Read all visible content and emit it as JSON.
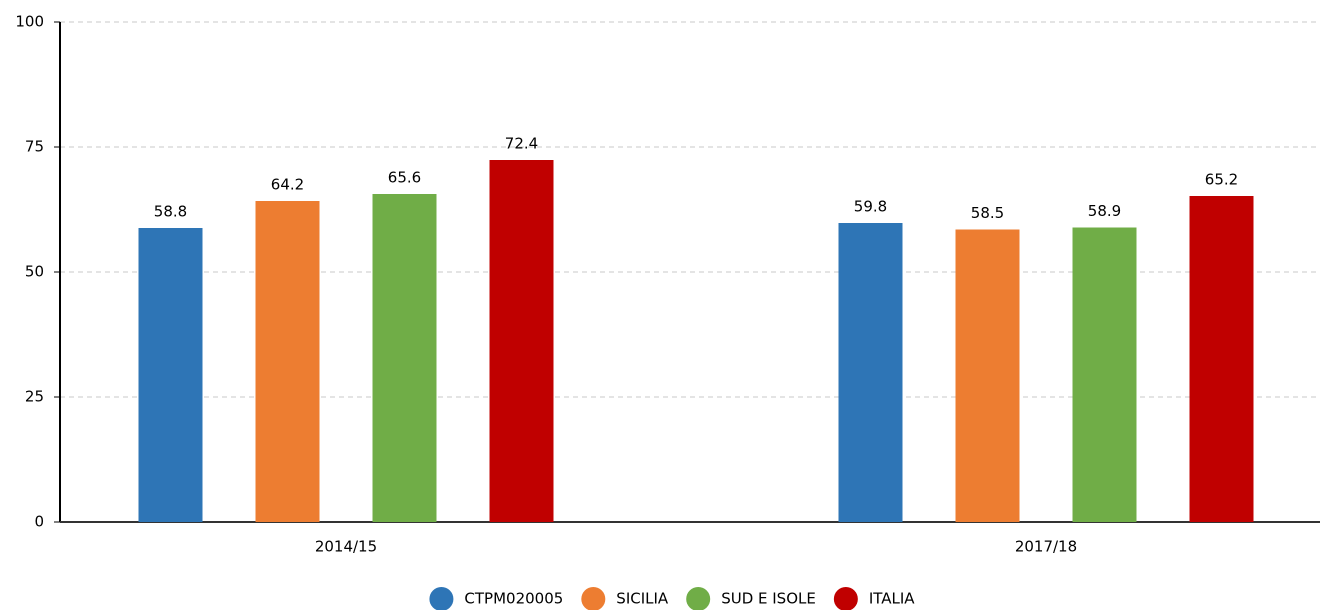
{
  "chart_data": {
    "type": "bar",
    "categories": [
      "2014/15",
      "2017/18"
    ],
    "series": [
      {
        "name": "CTPM020005",
        "color": "#2e75b6",
        "values": [
          58.8,
          59.8
        ]
      },
      {
        "name": "SICILIA",
        "color": "#ed7d31",
        "values": [
          64.2,
          58.5
        ]
      },
      {
        "name": "SUD E ISOLE",
        "color": "#70ad47",
        "values": [
          65.6,
          58.9
        ]
      },
      {
        "name": "ITALIA",
        "color": "#c00000",
        "values": [
          72.4,
          65.2
        ]
      }
    ],
    "ylim": [
      0,
      100
    ],
    "yticks": [
      0,
      25,
      50,
      75,
      100
    ],
    "grid": true,
    "legend": "bottom"
  }
}
